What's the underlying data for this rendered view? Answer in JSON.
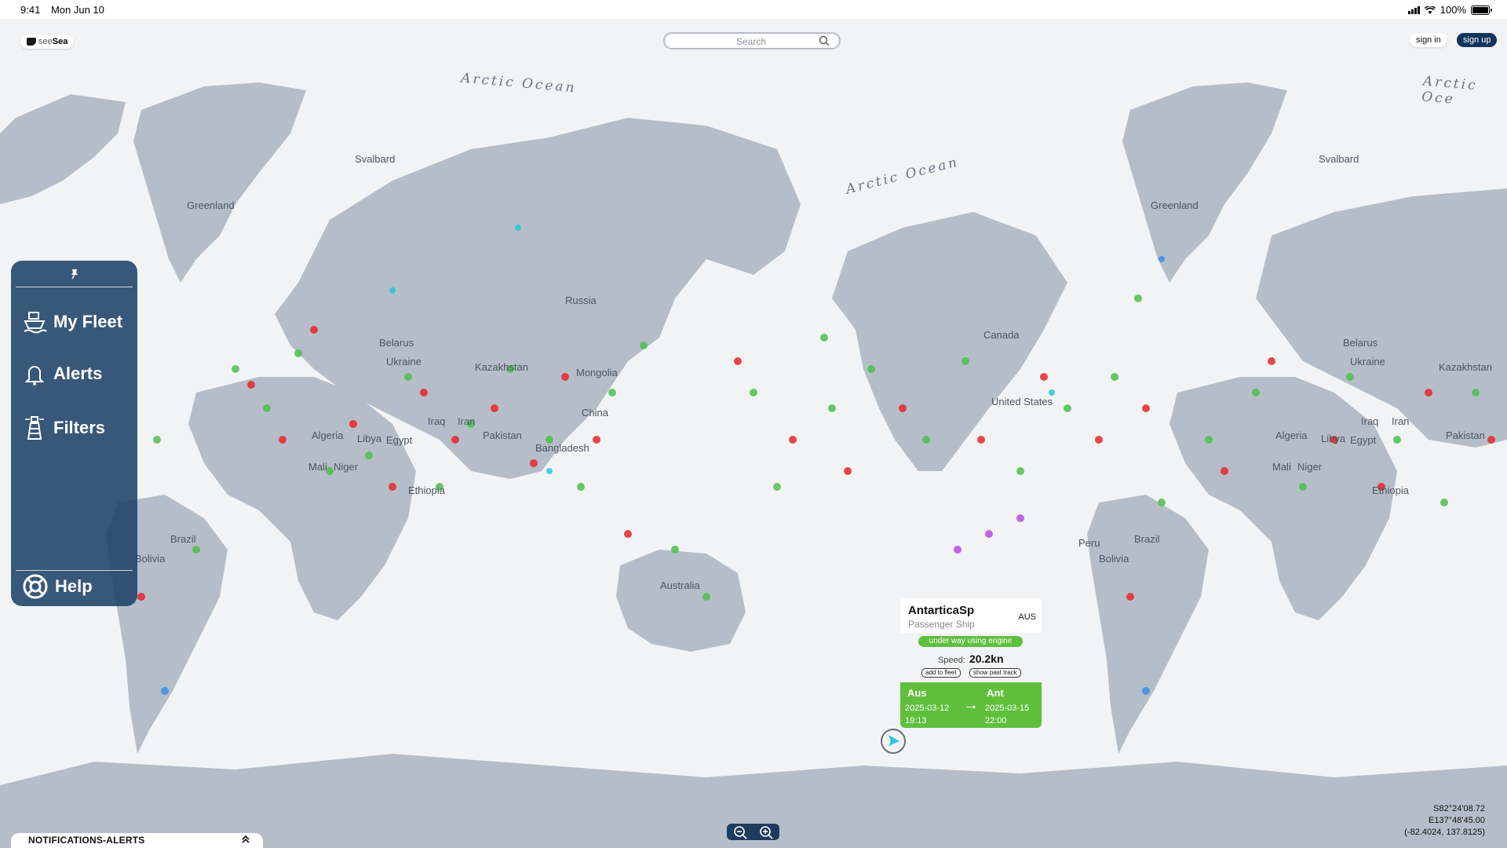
{
  "status_bar": {
    "time": "9:41",
    "date": "Mon Jun 10",
    "battery": "100%"
  },
  "header": {
    "logo_text_light": "see",
    "logo_text_bold": "Sea",
    "search_placeholder": "Search",
    "sign_in": "sign in",
    "sign_up": "sign up"
  },
  "sidebar": {
    "items": [
      {
        "label": "My Fleet",
        "icon": "ship-icon"
      },
      {
        "label": "Alerts",
        "icon": "bell-icon"
      },
      {
        "label": "Filters",
        "icon": "lighthouse-icon"
      },
      {
        "label": "Help",
        "icon": "lifebuoy-icon"
      }
    ]
  },
  "map": {
    "ocean_labels": [
      "Arctic Ocean",
      "Arctic Ocean",
      "Arctic Oce"
    ],
    "labels": [
      "Svalbard",
      "Greenland",
      "Russia",
      "Canada",
      "Belarus",
      "Ukraine",
      "Kazakhstan",
      "Mongolia",
      "China",
      "Iran",
      "Iraq",
      "Algeria",
      "Libya",
      "Egypt",
      "Mali",
      "Niger",
      "Pakistan",
      "Bangladesh",
      "Ethiopia",
      "Brazil",
      "Bolivia",
      "Australia",
      "United States",
      "Svalbard",
      "Greenland",
      "Belarus",
      "Ukraine",
      "Kazakhstan",
      "Algeria",
      "Libya",
      "Egypt",
      "Mali",
      "Niger",
      "Ethiopia",
      "Iran",
      "Iraq",
      "Pakistan",
      "Brazil",
      "Bolivia",
      "Peru"
    ]
  },
  "vessel": {
    "name": "AntarticaSp",
    "type": "Passenger Ship",
    "flag": "AUS",
    "status": "under way using engine",
    "speed_label": "Speed:",
    "speed": "20.2kn",
    "add_to_fleet": "add to fleet",
    "show_past_track": "show past track",
    "from_port": "Aus",
    "to_port": "Ant",
    "departure_date": "2025-03-12",
    "departure_time": "19:13",
    "arrival_date": "2025-03-15",
    "arrival_time": "22:00",
    "status_color": "#5fbf3d"
  },
  "coordinates": {
    "lat": "S82°24'08.72",
    "lon": "E137°48'45.00",
    "decimal": "(-82.4024, 137.8125)"
  },
  "notifications": {
    "label": "NOTIFICATIONS-ALERTS"
  },
  "colors": {
    "panel": "#1e4268",
    "brand_dark": "#12355b",
    "land": "#b5bec8",
    "sea": "#f2f3f5",
    "vessel_cargo": "#4cc04c",
    "vessel_tanker": "#e8262a",
    "vessel_passenger": "#3a8fe8",
    "vessel_other": "#b94ce0"
  }
}
